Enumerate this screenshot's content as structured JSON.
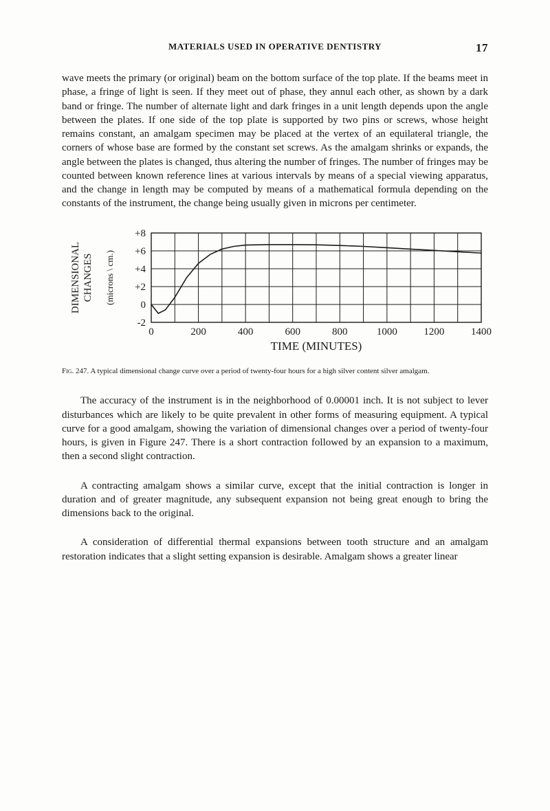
{
  "header": {
    "title": "MATERIALS USED IN OPERATIVE DENTISTRY",
    "page_number": "17"
  },
  "paragraphs": {
    "p1": "wave meets the primary (or original) beam on the bottom surface of the top plate. If the beams meet in phase, a fringe of light is seen. If they meet out of phase, they annul each other, as shown by a dark band or fringe. The number of alternate light and dark fringes in a unit length depends upon the angle between the plates. If one side of the top plate is supported by two pins or screws, whose height remains constant, an amalgam specimen may be placed at the vertex of an equilateral triangle, the corners of whose base are formed by the constant set screws. As the amalgam shrinks or expands, the angle between the plates is changed, thus altering the number of fringes. The number of fringes may be counted between known reference lines at various intervals by means of a special viewing apparatus, and the change in length may be computed by means of a mathematical formula depending on the constants of the instrument, the change being usually given in microns per centimeter.",
    "p2": "The accuracy of the instrument is in the neighborhood of 0.00001 inch. It is not subject to lever disturbances which are likely to be quite prevalent in other forms of measuring equipment. A typical curve for a good amalgam, showing the variation of dimensional changes over a period of twenty-four hours, is given in Figure 247. There is a short contraction followed by an expansion to a maximum, then a second slight contraction.",
    "p3": "A contracting amalgam shows a similar curve, except that the initial contraction is longer in duration and of greater magnitude, any subsequent expansion not being great enough to bring the dimensions back to the original.",
    "p4": "A consideration of differential thermal expansions between tooth structure and an amalgam restoration indicates that a slight setting expansion is desirable. Amalgam shows a greater linear"
  },
  "chart": {
    "type": "line",
    "y_label_line1": "DIMENSIONAL",
    "y_label_line2": "CHANGES",
    "y_label_line3": "(microns \\ cm.)",
    "x_label": "TIME (MINUTES)",
    "x_ticks": [
      "0",
      "200",
      "400",
      "600",
      "800",
      "1000",
      "1200",
      "1400"
    ],
    "y_ticks": [
      "-2",
      "0",
      "+2",
      "+4",
      "+6",
      "+8"
    ],
    "xlim": [
      0,
      1400
    ],
    "ylim": [
      -2,
      8
    ],
    "x_step": 100,
    "y_step": 2,
    "line_color": "#1a1a1a",
    "grid_color": "#1a1a1a",
    "background_color": "#fdfdfb",
    "line_width": 1.6,
    "grid_width": 1,
    "data": [
      [
        0,
        0
      ],
      [
        30,
        -1.0
      ],
      [
        60,
        -0.6
      ],
      [
        100,
        0.8
      ],
      [
        150,
        3.0
      ],
      [
        200,
        4.6
      ],
      [
        250,
        5.6
      ],
      [
        300,
        6.2
      ],
      [
        350,
        6.5
      ],
      [
        400,
        6.65
      ],
      [
        500,
        6.7
      ],
      [
        600,
        6.7
      ],
      [
        700,
        6.68
      ],
      [
        800,
        6.6
      ],
      [
        900,
        6.5
      ],
      [
        1000,
        6.35
      ],
      [
        1100,
        6.2
      ],
      [
        1200,
        6.05
      ],
      [
        1300,
        5.9
      ],
      [
        1400,
        5.75
      ]
    ]
  },
  "caption": {
    "fig": "Fig. 247.",
    "text": "A typical dimensional change curve over a period of twenty-four hours for a high silver content silver amalgam."
  }
}
